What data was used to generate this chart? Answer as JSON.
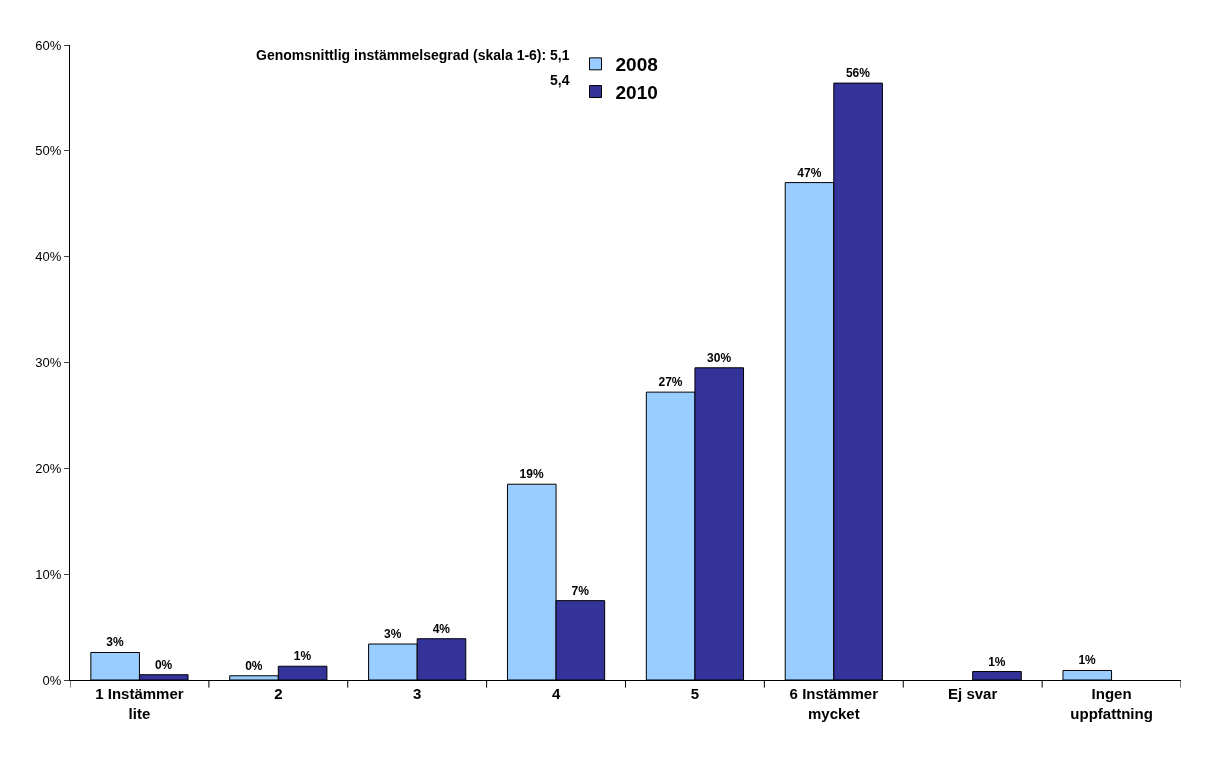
{
  "chart_data": {
    "type": "bar",
    "categories": [
      "1 Instämmer lite",
      "2",
      "3",
      "4",
      "5",
      "6 Instämmer mycket",
      "Ej svar",
      "Ingen uppfattning"
    ],
    "series": [
      {
        "name": "2008",
        "color": "#99ccff",
        "values": [
          2.6,
          0.4,
          3.4,
          18.5,
          27.2,
          47.0,
          null,
          0.9
        ],
        "value_labels": [
          "3%",
          "0%",
          "3%",
          "19%",
          "27%",
          "47%",
          null,
          "1%"
        ]
      },
      {
        "name": "2010",
        "color": "#333399",
        "values": [
          0.5,
          1.3,
          3.9,
          7.5,
          29.5,
          56.4,
          0.8,
          null
        ],
        "value_labels": [
          "0%",
          "1%",
          "4%",
          "7%",
          "30%",
          "56%",
          "1%",
          null
        ]
      }
    ],
    "annotations": [
      "Genomsnittlig instämmelsegrad (skala 1-6): 5,1",
      "5,4"
    ],
    "ylim": [
      0,
      60
    ],
    "yticks": [
      {
        "value": 0,
        "label": "0%"
      },
      {
        "value": 10,
        "label": "10%"
      },
      {
        "value": 20,
        "label": "20%"
      },
      {
        "value": 30,
        "label": "30%"
      },
      {
        "value": 40,
        "label": "40%"
      },
      {
        "value": 50,
        "label": "50%"
      },
      {
        "value": 60,
        "label": "60%"
      }
    ],
    "legend": "top"
  }
}
